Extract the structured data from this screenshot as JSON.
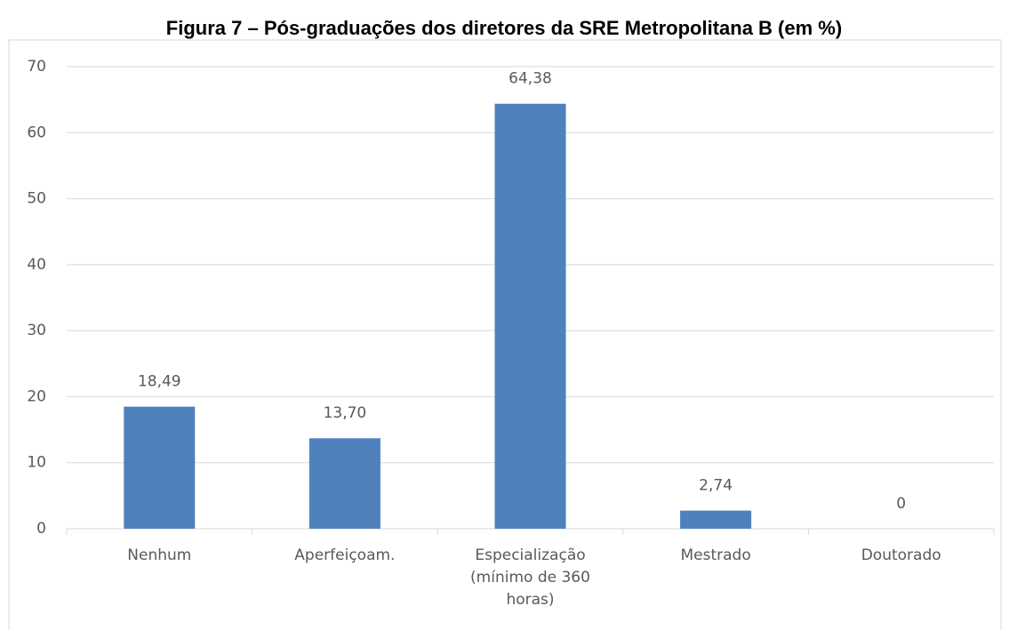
{
  "chart_data": {
    "type": "bar",
    "title": "Figura 7 – Pós-graduações dos diretores da SRE Metropolitana B (em %)",
    "categories": [
      "Nenhum",
      "Aperfeiçoam.",
      "Especialização (mínimo de 360 horas)",
      "Mestrado",
      "Doutorado"
    ],
    "values": [
      18.49,
      13.7,
      64.38,
      2.74,
      0
    ],
    "value_labels": [
      "18,49",
      "13,70",
      "64,38",
      "2,74",
      "0"
    ],
    "color": "#4f81bd",
    "ylim": [
      0,
      70
    ],
    "yticks": [
      0,
      10,
      20,
      30,
      40,
      50,
      60,
      70
    ],
    "grid": true
  }
}
